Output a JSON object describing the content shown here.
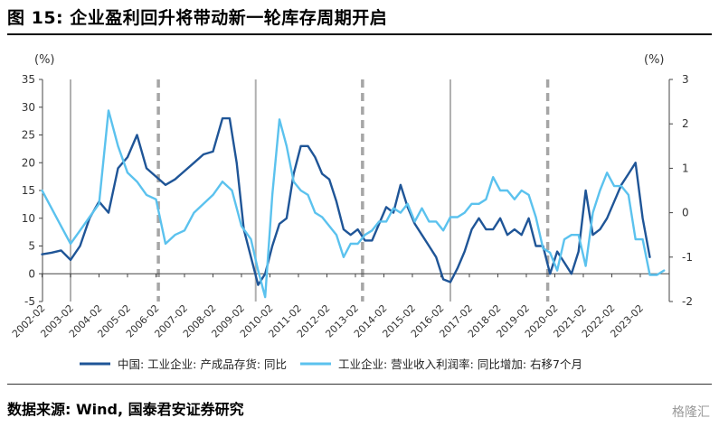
{
  "figure": {
    "title": "图 15:  企业盈利回升将带动新一轮库存周期开启",
    "source": "数据来源:  Wind,  国泰君安证券研究",
    "watermark": "格隆汇"
  },
  "chart_data": {
    "type": "line",
    "left_unit": "(%)",
    "right_unit": "(%)",
    "ylim_left": [
      -5,
      35
    ],
    "yticks_left": [
      -5,
      0,
      5,
      10,
      15,
      20,
      25,
      30,
      35
    ],
    "ylim_right": [
      -2,
      3
    ],
    "yticks_right": [
      -2,
      -1,
      0,
      1,
      2,
      3
    ],
    "x_tick_labels": [
      "2002-02",
      "2003-02",
      "2004-02",
      "2005-02",
      "2006-02",
      "2007-02",
      "2008-02",
      "2009-02",
      "2010-02",
      "2011-02",
      "2012-02",
      "2013-02",
      "2014-02",
      "2015-02",
      "2016-02",
      "2017-02",
      "2018-02",
      "2019-02",
      "2020-02",
      "2021-02",
      "2022-02",
      "2023-02"
    ],
    "x_range": [
      2002.1,
      2024.1
    ],
    "vertical_lines": [
      {
        "x": "2003-02",
        "style": "solid"
      },
      {
        "x": "2006-03",
        "style": "dashed"
      },
      {
        "x": "2009-08",
        "style": "solid"
      },
      {
        "x": "2013-05",
        "style": "dashed"
      },
      {
        "x": "2016-06",
        "style": "solid"
      },
      {
        "x": "2019-11",
        "style": "dashed"
      }
    ],
    "series": [
      {
        "name": "中国: 工业企业: 产成品存货: 同比",
        "axis": "left",
        "color": "#1f5597",
        "x": [
          "2002-02",
          "2002-06",
          "2002-10",
          "2003-02",
          "2003-06",
          "2003-10",
          "2004-02",
          "2004-06",
          "2004-10",
          "2005-02",
          "2005-06",
          "2005-10",
          "2006-02",
          "2006-06",
          "2006-10",
          "2007-02",
          "2007-06",
          "2007-10",
          "2008-02",
          "2008-06",
          "2008-09",
          "2008-12",
          "2009-03",
          "2009-06",
          "2009-09",
          "2009-12",
          "2010-03",
          "2010-06",
          "2010-09",
          "2010-12",
          "2011-03",
          "2011-06",
          "2011-09",
          "2011-12",
          "2012-03",
          "2012-06",
          "2012-09",
          "2012-12",
          "2013-03",
          "2013-06",
          "2013-09",
          "2013-12",
          "2014-03",
          "2014-06",
          "2014-09",
          "2014-12",
          "2015-03",
          "2015-06",
          "2015-09",
          "2015-12",
          "2016-03",
          "2016-06",
          "2016-09",
          "2016-12",
          "2017-03",
          "2017-06",
          "2017-09",
          "2017-12",
          "2018-03",
          "2018-06",
          "2018-09",
          "2018-12",
          "2019-03",
          "2019-06",
          "2019-09",
          "2019-12",
          "2020-03",
          "2020-06",
          "2020-09",
          "2020-12",
          "2021-03",
          "2021-06",
          "2021-09",
          "2021-12",
          "2022-03",
          "2022-06",
          "2022-09",
          "2022-12",
          "2023-03",
          "2023-06"
        ],
        "values": [
          3.5,
          3.8,
          4.2,
          2.5,
          5,
          10,
          13,
          11,
          19,
          21,
          25,
          19,
          17.5,
          16,
          17,
          18.5,
          20,
          21.5,
          22,
          28,
          28,
          20,
          8,
          3,
          -2,
          0,
          5,
          9,
          10,
          18,
          23,
          23,
          21,
          18,
          17,
          13,
          8,
          7,
          8,
          6,
          6,
          9,
          12,
          11,
          16,
          12,
          9,
          7,
          5,
          3,
          -1,
          -1.5,
          1,
          4,
          8,
          10,
          8,
          8,
          10,
          7,
          8,
          7,
          10,
          5,
          5,
          0,
          4,
          2,
          0,
          4,
          15,
          7,
          8,
          10,
          13,
          16,
          18,
          20,
          10,
          3
        ]
      },
      {
        "name": "工业企业: 营业收入利润率: 同比增加: 右移7个月",
        "axis": "right",
        "color": "#5bc2ee",
        "x": [
          "2002-02",
          "2002-06",
          "2002-10",
          "2003-02",
          "2003-06",
          "2003-10",
          "2004-02",
          "2004-06",
          "2004-10",
          "2005-02",
          "2005-06",
          "2005-10",
          "2006-02",
          "2006-06",
          "2006-10",
          "2007-02",
          "2007-06",
          "2007-10",
          "2008-02",
          "2008-06",
          "2008-10",
          "2009-02",
          "2009-06",
          "2009-09",
          "2009-12",
          "2010-03",
          "2010-06",
          "2010-09",
          "2010-12",
          "2011-03",
          "2011-06",
          "2011-09",
          "2011-12",
          "2012-03",
          "2012-06",
          "2012-09",
          "2012-12",
          "2013-03",
          "2013-06",
          "2013-09",
          "2013-12",
          "2014-03",
          "2014-06",
          "2014-09",
          "2014-12",
          "2015-03",
          "2015-06",
          "2015-09",
          "2015-12",
          "2016-03",
          "2016-06",
          "2016-09",
          "2016-12",
          "2017-03",
          "2017-06",
          "2017-09",
          "2017-12",
          "2018-03",
          "2018-06",
          "2018-09",
          "2018-12",
          "2019-03",
          "2019-06",
          "2019-09",
          "2019-12",
          "2020-03",
          "2020-06",
          "2020-09",
          "2020-12",
          "2021-03",
          "2021-06",
          "2021-09",
          "2021-12",
          "2022-03",
          "2022-06",
          "2022-09",
          "2022-12",
          "2023-03",
          "2023-06",
          "2023-09",
          "2023-12"
        ],
        "values": [
          0.5,
          0.1,
          -0.3,
          -0.7,
          -0.4,
          -0.1,
          0.2,
          2.3,
          1.5,
          0.9,
          0.7,
          0.4,
          0.3,
          -0.7,
          -0.5,
          -0.4,
          0.0,
          0.2,
          0.4,
          0.7,
          0.5,
          -0.3,
          -0.6,
          -1.3,
          -1.9,
          0.4,
          2.1,
          1.5,
          0.7,
          0.5,
          0.4,
          0.0,
          -0.1,
          -0.3,
          -0.5,
          -1.0,
          -0.7,
          -0.7,
          -0.5,
          -0.4,
          -0.2,
          -0.2,
          0.1,
          0.0,
          0.2,
          -0.2,
          0.1,
          -0.2,
          -0.2,
          -0.4,
          -0.1,
          -0.1,
          0.0,
          0.2,
          0.2,
          0.3,
          0.8,
          0.5,
          0.5,
          0.3,
          0.5,
          0.4,
          -0.1,
          -0.8,
          -0.9,
          -1.3,
          -0.6,
          -0.5,
          -0.5,
          -1.2,
          0.0,
          0.5,
          0.9,
          0.6,
          0.6,
          0.4,
          -0.6,
          -0.6,
          -1.4,
          -1.4,
          -1.3
        ]
      }
    ]
  }
}
